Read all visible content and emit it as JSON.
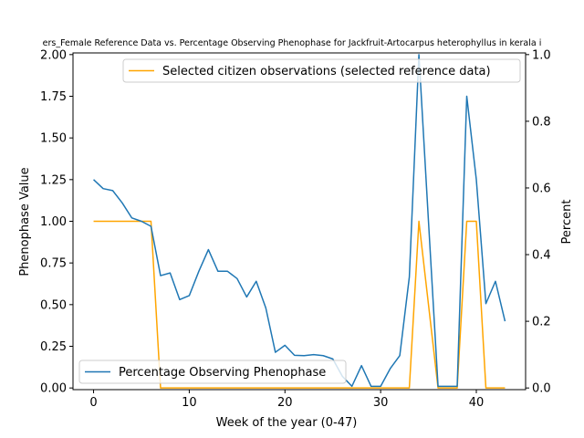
{
  "chart_data": {
    "type": "line",
    "title": "ers_Female Reference Data vs. Percentage Observing Phenophase for Jackfruit-Artocarpus heterophyllus in kerala i",
    "xlabel": "Week of the year (0-47)",
    "ylabel_left": "Phenophase Value",
    "ylabel_right": "Percent",
    "xlim": [
      -2.15,
      45.15
    ],
    "ylim_left": [
      -0.01,
      2.01
    ],
    "ylim_right": [
      -0.005,
      1.005
    ],
    "xticks": [
      0,
      10,
      20,
      30,
      40
    ],
    "yticks_left": [
      0.0,
      0.25,
      0.5,
      0.75,
      1.0,
      1.25,
      1.5,
      1.75,
      2.0
    ],
    "yticks_right": [
      0.0,
      0.2,
      0.4,
      0.6,
      0.8,
      1.0
    ],
    "grid": false,
    "series": [
      {
        "name": "Percentage Observing Phenophase",
        "axis": "right",
        "color": "#1f77b4",
        "legend_position": "lower-left",
        "x": [
          0,
          1,
          2,
          3,
          4,
          5,
          6,
          7,
          8,
          9,
          10,
          11,
          12,
          13,
          14,
          15,
          16,
          17,
          18,
          19,
          20,
          21,
          22,
          23,
          24,
          25,
          26,
          27,
          28,
          29,
          30,
          31,
          32,
          33,
          34,
          35,
          36,
          37,
          38,
          39,
          40,
          41,
          42,
          43
        ],
        "y": [
          0.625,
          0.598,
          0.592,
          0.555,
          0.51,
          0.5,
          0.485,
          0.337,
          0.345,
          0.265,
          0.277,
          0.35,
          0.415,
          0.35,
          0.35,
          0.328,
          0.273,
          0.32,
          0.24,
          0.107,
          0.128,
          0.098,
          0.097,
          0.1,
          0.097,
          0.087,
          0.035,
          0.005,
          0.067,
          0.005,
          0.005,
          0.058,
          0.097,
          0.333,
          1.0,
          0.5,
          0.005,
          0.005,
          0.005,
          0.875,
          0.625,
          0.253,
          0.32,
          0.2
        ]
      },
      {
        "name": "Selected citizen observations (selected reference data)",
        "axis": "left",
        "color": "#ffa500",
        "legend_position": "upper-right",
        "x": [
          0,
          1,
          2,
          3,
          4,
          5,
          6,
          7,
          8,
          9,
          10,
          11,
          12,
          13,
          14,
          15,
          16,
          17,
          18,
          19,
          20,
          21,
          22,
          23,
          24,
          25,
          26,
          27,
          28,
          29,
          30,
          31,
          32,
          33,
          34,
          35,
          36,
          37,
          38,
          39,
          40,
          41,
          42,
          43
        ],
        "y": [
          1,
          1,
          1,
          1,
          1,
          1,
          1,
          0,
          0,
          0,
          0,
          0,
          0,
          0,
          0,
          0,
          0,
          0,
          0,
          0,
          0,
          0,
          0,
          0,
          0,
          0,
          0,
          0,
          0,
          0,
          0,
          0,
          0,
          0,
          1,
          0.5,
          0,
          0,
          0,
          1,
          1,
          0,
          0,
          0
        ]
      }
    ]
  }
}
